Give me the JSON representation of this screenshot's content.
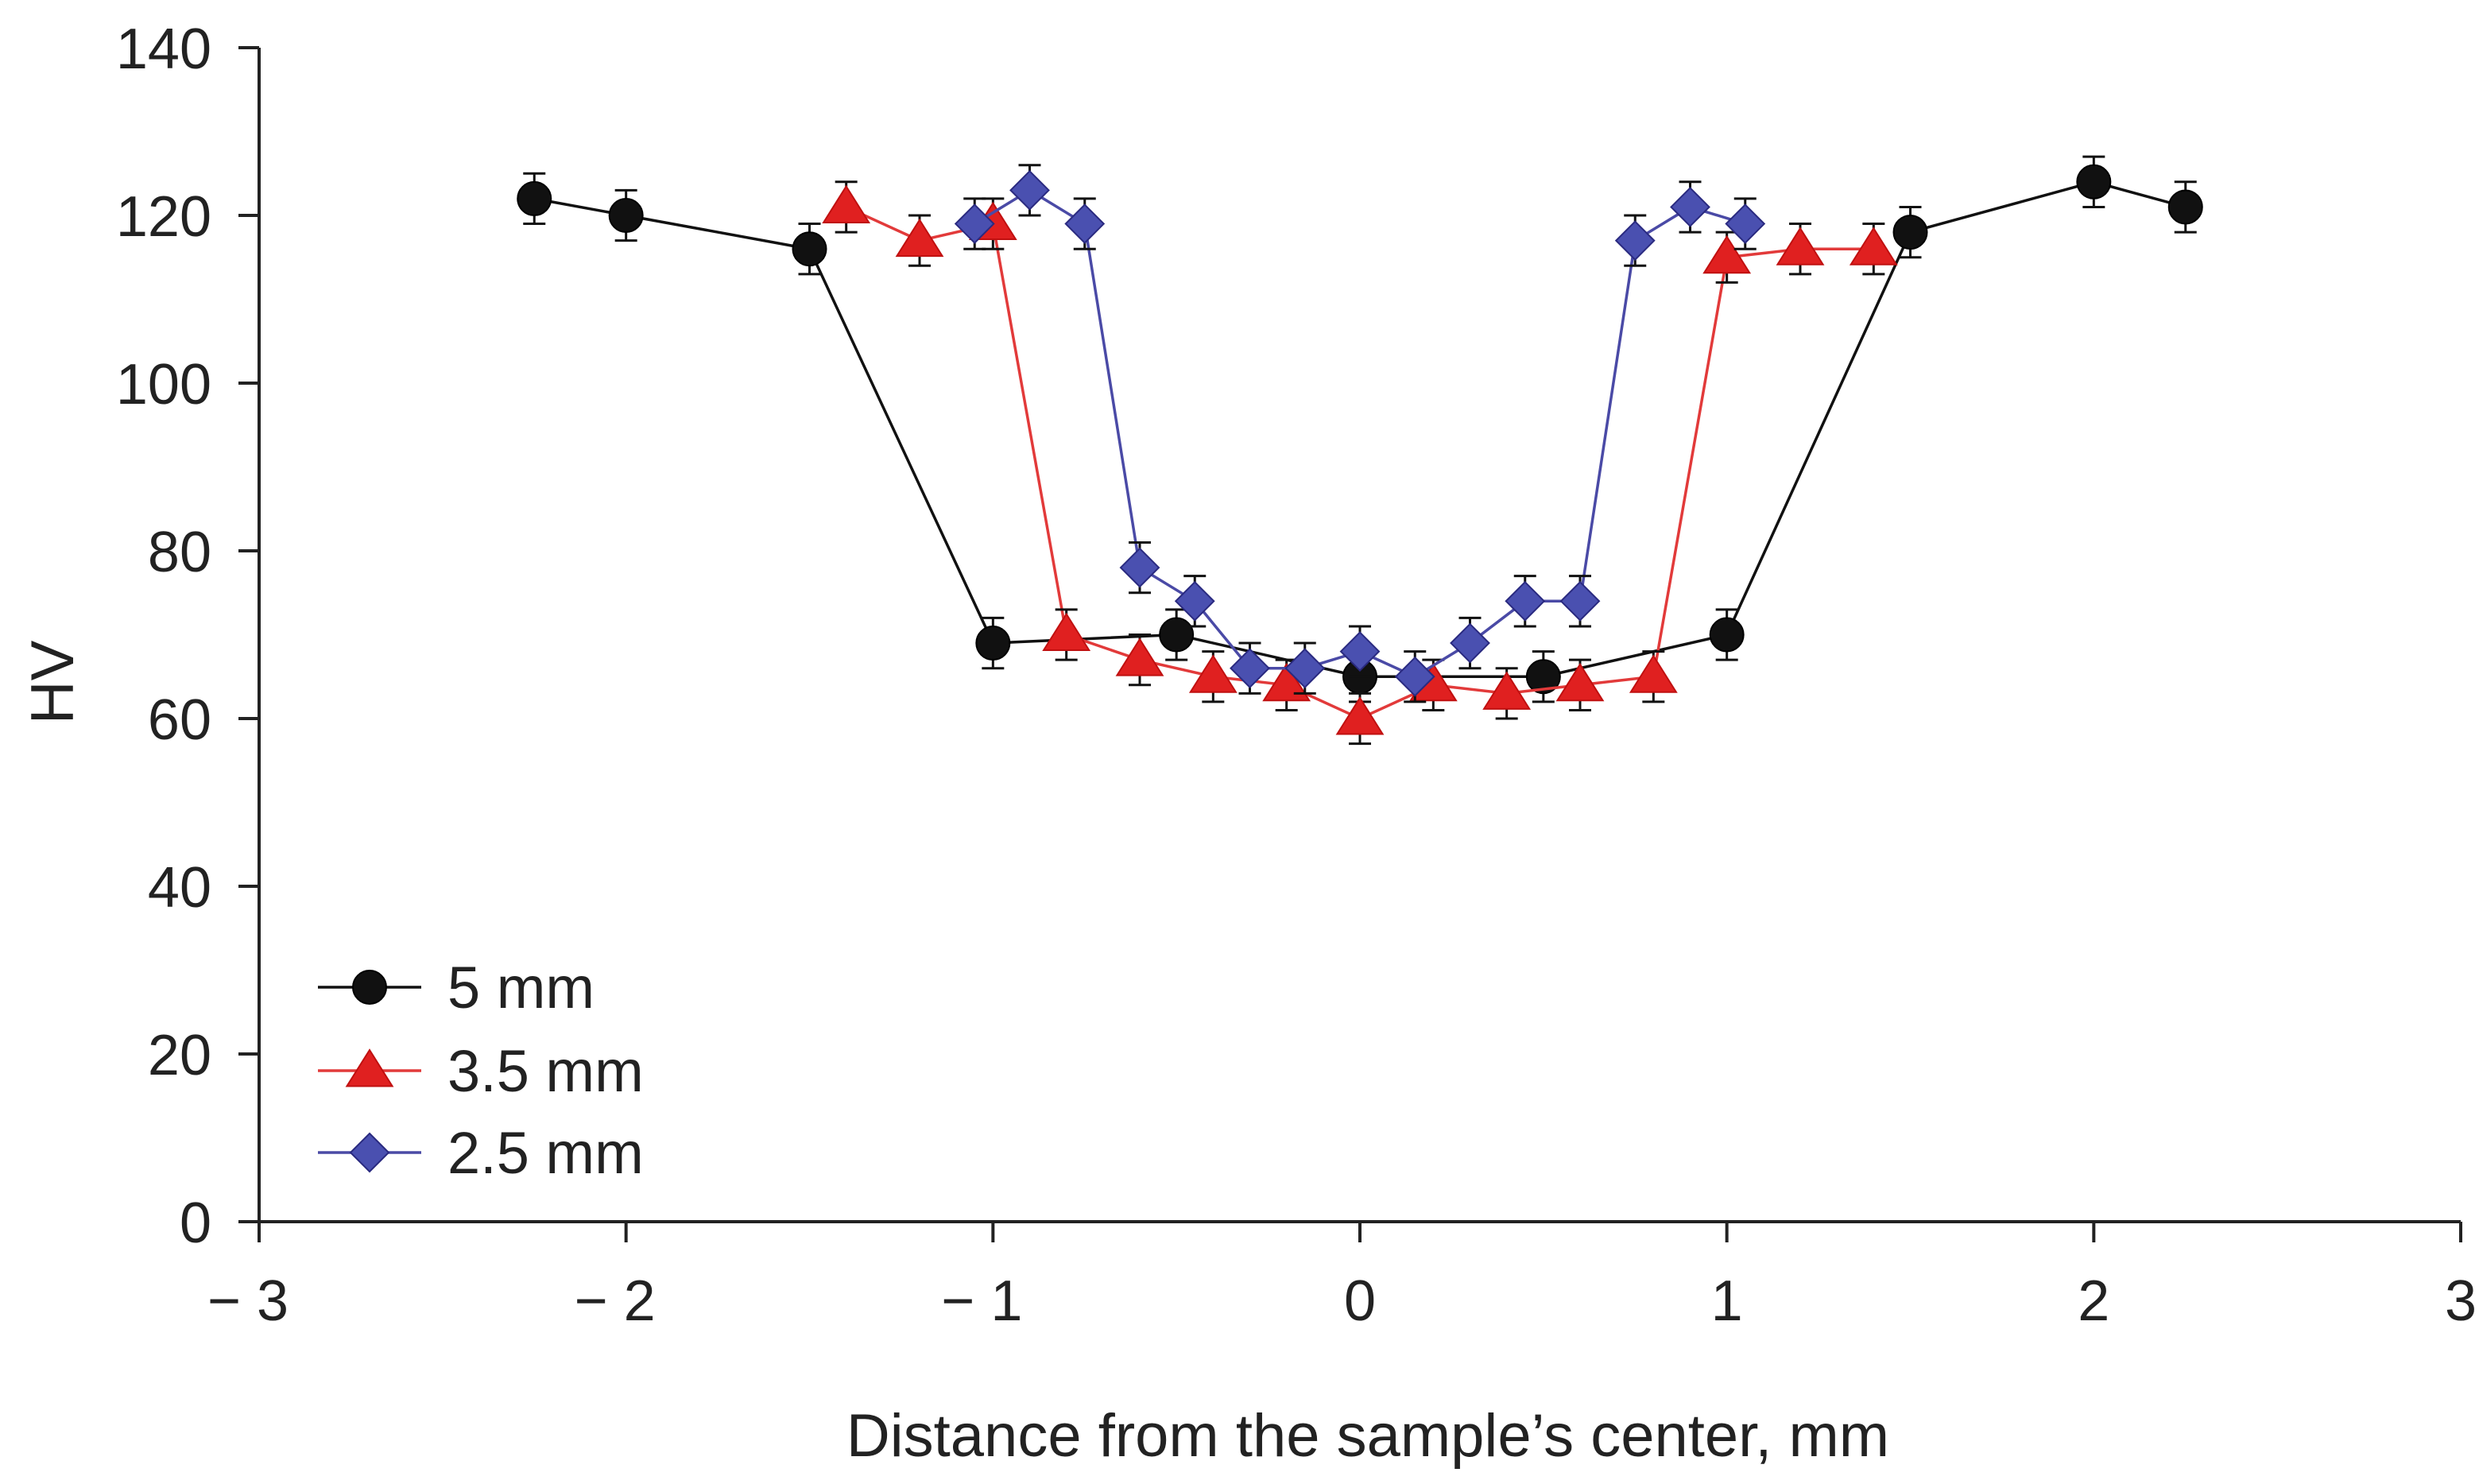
{
  "chart_data": {
    "type": "line",
    "title": "",
    "xlabel": "Distance from the sample’s center, mm",
    "ylabel": "HV",
    "xlim": [
      -3,
      3
    ],
    "ylim": [
      0,
      140
    ],
    "xticks": [
      -3,
      -2,
      -1,
      0,
      1,
      2,
      3
    ],
    "xtick_labels": [
      "− 3",
      "− 2",
      "− 1",
      "0",
      "1",
      "2",
      "3"
    ],
    "yticks": [
      0,
      20,
      40,
      60,
      80,
      100,
      120,
      140
    ],
    "ytick_labels": [
      "0",
      "20",
      "40",
      "60",
      "80",
      "100",
      "120",
      "140"
    ],
    "grid": false,
    "legend_position": "bottom-left",
    "series": [
      {
        "name": "5 mm",
        "marker": "circle",
        "line_color": "#111111",
        "marker_color": "#111111",
        "x": [
          -2.25,
          -2.0,
          -1.5,
          -1.0,
          -0.5,
          0.0,
          0.5,
          1.0,
          1.5,
          2.0,
          2.25
        ],
        "y": [
          122,
          120,
          116,
          69,
          70,
          65,
          65,
          70,
          118,
          124,
          121
        ],
        "err": [
          3,
          3,
          3,
          3,
          3,
          3,
          3,
          3,
          3,
          3,
          3
        ]
      },
      {
        "name": "3.5 mm",
        "marker": "triangle",
        "line_color": "#e23a3a",
        "marker_color": "#e02020",
        "x": [
          -1.4,
          -1.2,
          -1.0,
          -0.8,
          -0.6,
          -0.4,
          -0.2,
          0.0,
          0.2,
          0.4,
          0.6,
          0.8,
          1.0,
          1.2,
          1.4
        ],
        "y": [
          121,
          117,
          119,
          70,
          67,
          65,
          64,
          60,
          64,
          63,
          64,
          65,
          115,
          116,
          116
        ],
        "err": [
          3,
          3,
          3,
          3,
          3,
          3,
          3,
          3,
          3,
          3,
          3,
          3,
          3,
          3,
          3
        ]
      },
      {
        "name": "2.5 mm",
        "marker": "diamond",
        "line_color": "#4a4aa6",
        "marker_color": "#4a50b0",
        "x": [
          -1.05,
          -0.9,
          -0.75,
          -0.6,
          -0.45,
          -0.3,
          -0.15,
          0.0,
          0.15,
          0.3,
          0.45,
          0.6,
          0.75,
          0.9,
          1.05
        ],
        "y": [
          119,
          123,
          119,
          78,
          74,
          66,
          66,
          68,
          65,
          69,
          74,
          74,
          117,
          121,
          119
        ],
        "err": [
          3,
          3,
          3,
          3,
          3,
          3,
          3,
          3,
          3,
          3,
          3,
          3,
          3,
          3,
          3
        ]
      }
    ]
  }
}
